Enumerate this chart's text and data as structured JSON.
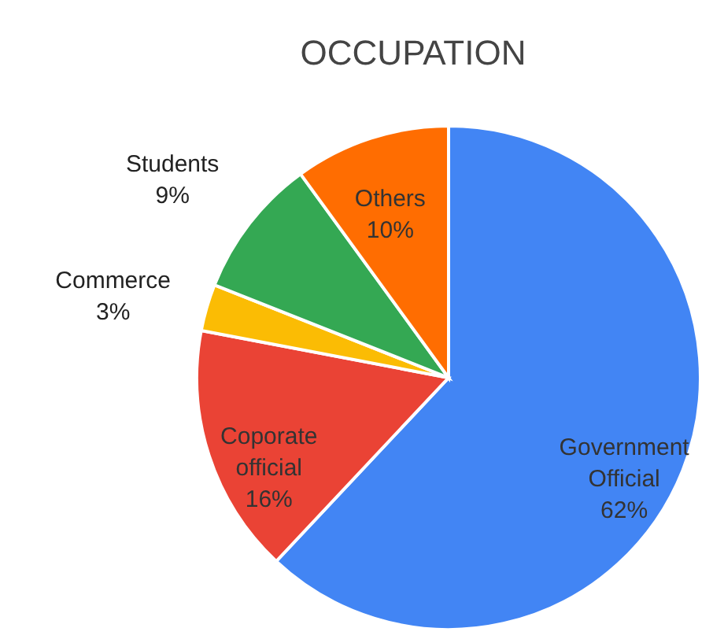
{
  "chart_data": {
    "type": "pie",
    "title": "OCCUPATION",
    "categories": [
      "Government Official",
      "Coporate official",
      "Commerce",
      "Students",
      "Others"
    ],
    "values": [
      62,
      16,
      3,
      9,
      10
    ],
    "value_labels": [
      "62%",
      "16%",
      "3%",
      "9%",
      "10%"
    ],
    "colors": [
      "#4285f4",
      "#ea4335",
      "#fbbc04",
      "#34a853",
      "#ff6d01"
    ],
    "legend": false
  }
}
